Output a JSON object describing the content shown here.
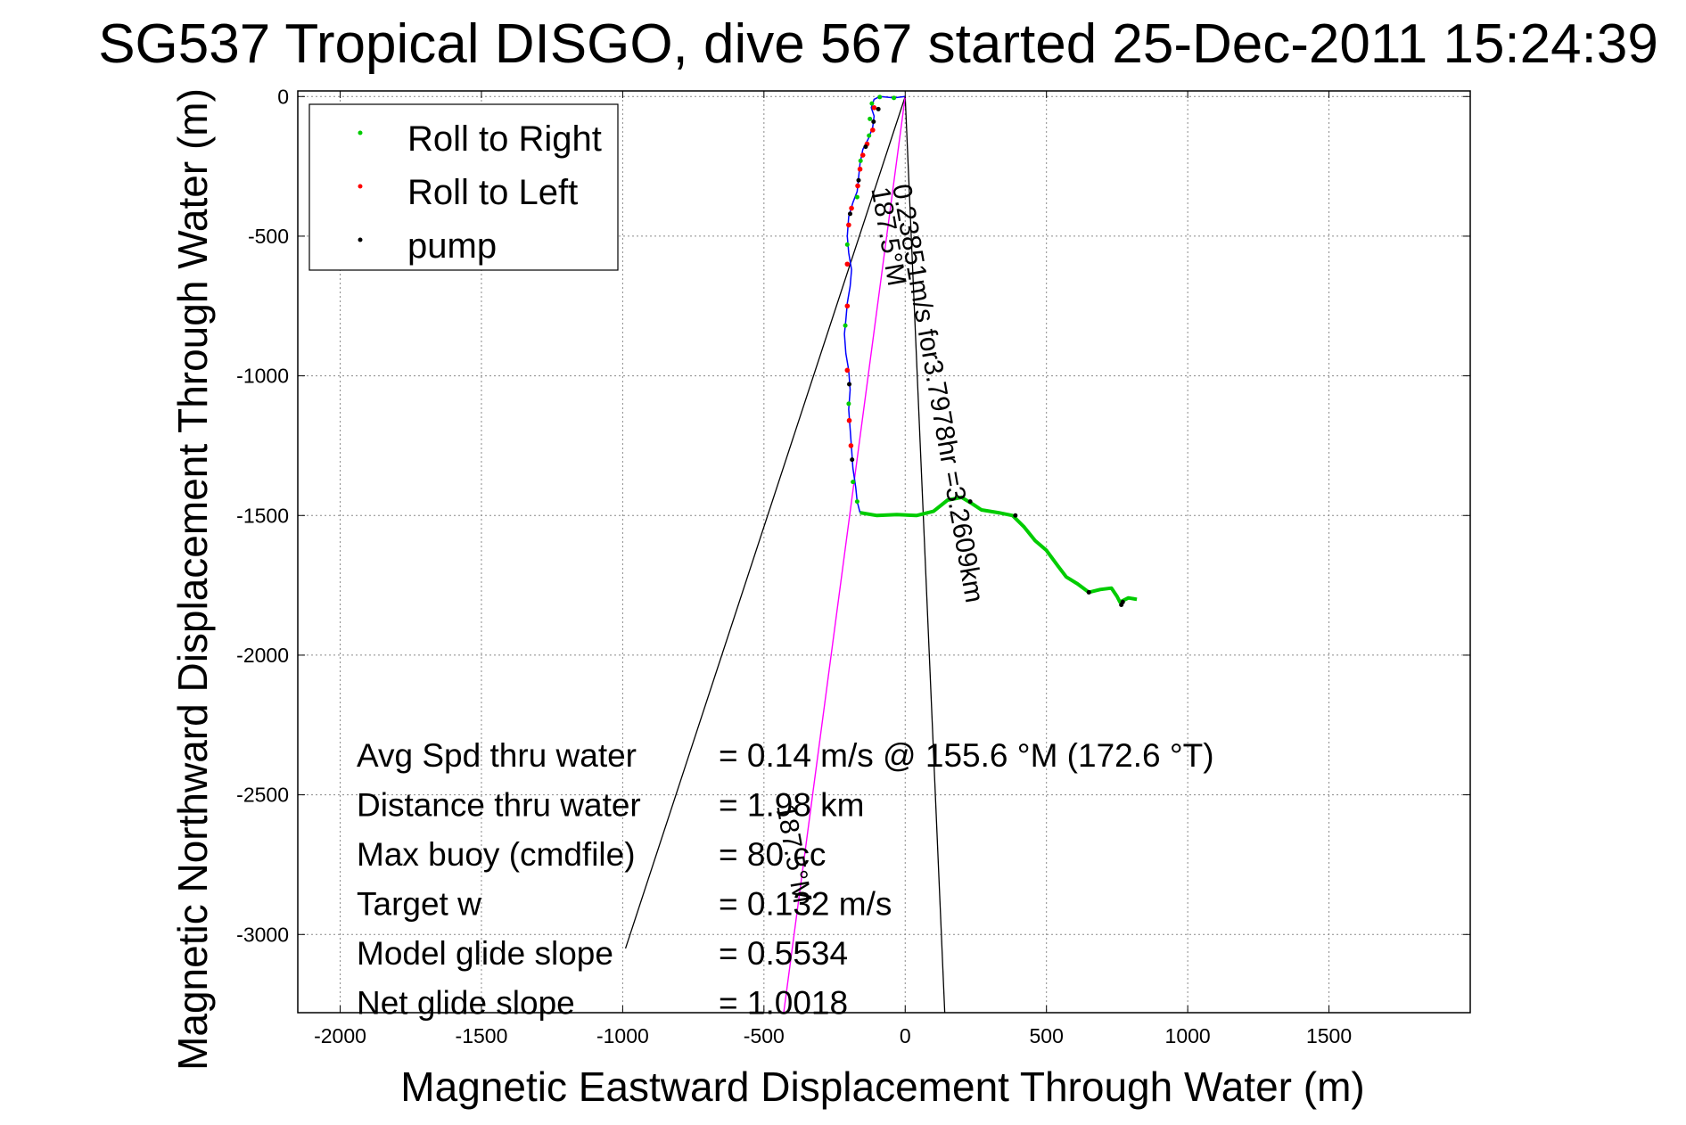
{
  "chart_data": {
    "type": "line",
    "title": "SG537 Tropical DISGO, dive 567 started 25-Dec-2011 15:24:39",
    "xlabel": "Magnetic Eastward Displacement Through Water (m)",
    "ylabel": "Magnetic Northward Displacement Through Water (m)",
    "xlim": [
      -2150,
      2000
    ],
    "ylim": [
      -3280,
      20
    ],
    "grid": true,
    "x_ticks": [
      -2000,
      -1500,
      -1000,
      -500,
      0,
      500,
      1000,
      1500
    ],
    "y_ticks": [
      0,
      -500,
      -1000,
      -1500,
      -2000,
      -2500,
      -3000
    ],
    "x_tick_labels": [
      "-2000",
      "-1500",
      "-1000",
      "-500",
      "0",
      "500",
      "1000",
      "1500"
    ],
    "y_tick_labels": [
      "0",
      "-500",
      "-1000",
      "-1500",
      "-2000",
      "-2500",
      "-3000"
    ],
    "legend": {
      "position": "top-left",
      "entries": [
        {
          "label": "Roll to Right",
          "color": "#00cc00"
        },
        {
          "label": "Roll to Left",
          "color": "#ff0000"
        },
        {
          "label": "pump",
          "color": "#000000"
        }
      ]
    },
    "track": {
      "color": "#0000ff",
      "points": [
        [
          0,
          0
        ],
        [
          -40,
          -5
        ],
        [
          -90,
          0
        ],
        [
          -110,
          -10
        ],
        [
          -120,
          -40
        ],
        [
          -110,
          -70
        ],
        [
          -115,
          -110
        ],
        [
          -130,
          -150
        ],
        [
          -150,
          -190
        ],
        [
          -160,
          -240
        ],
        [
          -165,
          -290
        ],
        [
          -170,
          -340
        ],
        [
          -185,
          -380
        ],
        [
          -200,
          -430
        ],
        [
          -205,
          -500
        ],
        [
          -200,
          -560
        ],
        [
          -190,
          -620
        ],
        [
          -195,
          -680
        ],
        [
          -205,
          -740
        ],
        [
          -210,
          -800
        ],
        [
          -215,
          -850
        ],
        [
          -210,
          -920
        ],
        [
          -200,
          -980
        ],
        [
          -195,
          -1050
        ],
        [
          -200,
          -1120
        ],
        [
          -195,
          -1190
        ],
        [
          -190,
          -1260
        ],
        [
          -185,
          -1330
        ],
        [
          -175,
          -1400
        ],
        [
          -170,
          -1450
        ],
        [
          -160,
          -1490
        ]
      ]
    },
    "surface_track": {
      "color": "#00cc00",
      "points": [
        [
          -160,
          -1490
        ],
        [
          -100,
          -1500
        ],
        [
          -30,
          -1497
        ],
        [
          40,
          -1500
        ],
        [
          100,
          -1485
        ],
        [
          150,
          -1445
        ],
        [
          200,
          -1435
        ],
        [
          240,
          -1460
        ],
        [
          270,
          -1480
        ],
        [
          330,
          -1490
        ],
        [
          380,
          -1500
        ],
        [
          420,
          -1540
        ],
        [
          460,
          -1590
        ],
        [
          500,
          -1625
        ],
        [
          540,
          -1680
        ],
        [
          570,
          -1720
        ],
        [
          610,
          -1745
        ],
        [
          650,
          -1775
        ],
        [
          690,
          -1765
        ],
        [
          730,
          -1760
        ],
        [
          750,
          -1790
        ],
        [
          760,
          -1810
        ],
        [
          790,
          -1795
        ],
        [
          820,
          -1800
        ]
      ]
    },
    "roll_left_points": [
      [
        -110,
        -40
      ],
      [
        -115,
        -120
      ],
      [
        -135,
        -170
      ],
      [
        -150,
        -210
      ],
      [
        -160,
        -260
      ],
      [
        -168,
        -320
      ],
      [
        -190,
        -400
      ],
      [
        -200,
        -460
      ],
      [
        -205,
        -600
      ],
      [
        -205,
        -750
      ],
      [
        -205,
        -980
      ],
      [
        -198,
        -1160
      ],
      [
        -192,
        -1250
      ]
    ],
    "roll_right_points": [
      [
        -40,
        -5
      ],
      [
        -90,
        -2
      ],
      [
        -118,
        -25
      ],
      [
        -125,
        -80
      ],
      [
        -128,
        -140
      ],
      [
        -158,
        -230
      ],
      [
        -170,
        -360
      ],
      [
        -205,
        -530
      ],
      [
        -212,
        -820
      ],
      [
        -200,
        -1100
      ],
      [
        -185,
        -1380
      ],
      [
        -170,
        -1450
      ]
    ],
    "pump_points": [
      [
        -95,
        -45
      ],
      [
        -112,
        -90
      ],
      [
        -140,
        -180
      ],
      [
        -165,
        -300
      ],
      [
        -195,
        -420
      ],
      [
        -198,
        -1030
      ],
      [
        -188,
        -1300
      ],
      [
        230,
        -1450
      ],
      [
        390,
        -1500
      ],
      [
        650,
        -1775
      ],
      [
        765,
        -1820
      ],
      [
        770,
        -1810
      ]
    ],
    "current_vector": {
      "color": "#ff00ff",
      "from": [
        0,
        0
      ],
      "to": [
        -430,
        -3280
      ]
    },
    "envelope": {
      "color": "#000000",
      "apex": [
        0,
        0
      ],
      "left_end": [
        -990,
        -3050
      ],
      "right_end": [
        140,
        -3280
      ]
    },
    "annotations": [
      {
        "text": "0.23851m/s for3.7978hr =3.2609km",
        "at": [
          -45,
          -320
        ],
        "rotate": 80
      },
      {
        "text": "187.5°M",
        "at": [
          -120,
          -330
        ],
        "rotate": 80
      },
      {
        "text": "187.5°M",
        "at": [
          -455,
          -2540
        ],
        "rotate": 80
      }
    ],
    "stats": [
      {
        "label": "Avg Spd thru water",
        "value": "=  0.14 m/s @ 155.6 °M (172.6 °T)"
      },
      {
        "label": "Distance thru water",
        "value": "=   1.98 km"
      },
      {
        "label": "Max buoy (cmdfile)",
        "value": "= 80 cc"
      },
      {
        "label": "Target w",
        "value": "= 0.132 m/s"
      },
      {
        "label": "Model glide slope",
        "value": "= 0.5534"
      },
      {
        "label": "Net glide slope",
        "value": "= 1.0018"
      }
    ]
  }
}
